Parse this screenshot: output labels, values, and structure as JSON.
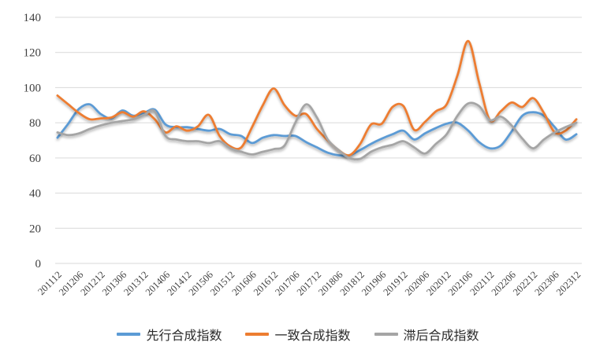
{
  "chart_data": {
    "type": "line",
    "title": "",
    "xlabel": "",
    "ylabel": "",
    "ylim": [
      0,
      140
    ],
    "y_ticks": [
      0,
      20,
      40,
      60,
      80,
      100,
      120,
      140
    ],
    "grid": "horizontal",
    "legend_position": "bottom",
    "x_tick_labels": [
      "201112",
      "201206",
      "201212",
      "201306",
      "201312",
      "201406",
      "201412",
      "201506",
      "201512",
      "201606",
      "201612",
      "201706",
      "201712",
      "201806",
      "201812",
      "201906",
      "201912",
      "202006",
      "202012",
      "202106",
      "202112",
      "202206",
      "202212",
      "202306",
      "202312"
    ],
    "categories": [
      "201112",
      "201203",
      "201206",
      "201209",
      "201212",
      "201303",
      "201306",
      "201309",
      "201312",
      "201403",
      "201406",
      "201409",
      "201412",
      "201503",
      "201506",
      "201509",
      "201512",
      "201603",
      "201606",
      "201609",
      "201612",
      "201703",
      "201706",
      "201709",
      "201712",
      "201803",
      "201806",
      "201809",
      "201812",
      "201903",
      "201906",
      "201909",
      "201912",
      "202003",
      "202006",
      "202009",
      "202012",
      "202103",
      "202106",
      "202109",
      "202112",
      "202203",
      "202206",
      "202209",
      "202212",
      "202303",
      "202306",
      "202309",
      "202312"
    ],
    "series": [
      {
        "name": "先行合成指数",
        "color": "#5B9BD5",
        "values": [
          71.5,
          79.5,
          88,
          90.5,
          85,
          82.5,
          87,
          84,
          85.5,
          87.5,
          79,
          77.5,
          77.5,
          76.5,
          75.5,
          76.5,
          73.5,
          72.5,
          68.5,
          71.5,
          73,
          72.5,
          72.5,
          69,
          66,
          63,
          61.5,
          61.5,
          64.5,
          68,
          71,
          73.5,
          75.5,
          70.5,
          74,
          77,
          79.5,
          80,
          75.5,
          69,
          65.5,
          67,
          75,
          84,
          86,
          84,
          77.5,
          70.5,
          73.5
        ]
      },
      {
        "name": "一致合成指数",
        "color": "#ED7D31",
        "values": [
          95.5,
          90.5,
          85.5,
          82,
          82.5,
          83,
          86,
          83.5,
          86.5,
          82,
          74.5,
          78,
          75.5,
          78,
          84.5,
          72.5,
          66.5,
          66,
          77.5,
          90,
          99.5,
          90,
          84,
          85,
          76.5,
          70,
          64.5,
          61.5,
          68,
          79,
          79.5,
          89,
          89.5,
          76,
          80.5,
          86.5,
          90.5,
          107,
          126.5,
          103,
          81.5,
          86.5,
          91.5,
          89,
          94,
          85.5,
          74.5,
          75.5,
          82
        ]
      },
      {
        "name": "滞后合成指数",
        "color": "#A5A5A5",
        "values": [
          74.5,
          73,
          74,
          76.5,
          78.5,
          80,
          81,
          82,
          84.5,
          86.5,
          72.5,
          70.5,
          69.5,
          69.5,
          68.5,
          69.5,
          65.5,
          63.5,
          62,
          63.5,
          65,
          67,
          80,
          90.5,
          83,
          70.5,
          64.5,
          60,
          59.5,
          63.5,
          66,
          67.5,
          69.5,
          66,
          62.5,
          68,
          73.5,
          84,
          91,
          89.5,
          81.5,
          83.5,
          78.5,
          71,
          65.5,
          70.5,
          74.5,
          77.5,
          80
        ]
      }
    ]
  },
  "colors": {
    "background": "#FFFFFF",
    "gridline": "#D9D9D9",
    "axis_text": "#3F3F3F",
    "legend_text": "#2B2B2B"
  }
}
